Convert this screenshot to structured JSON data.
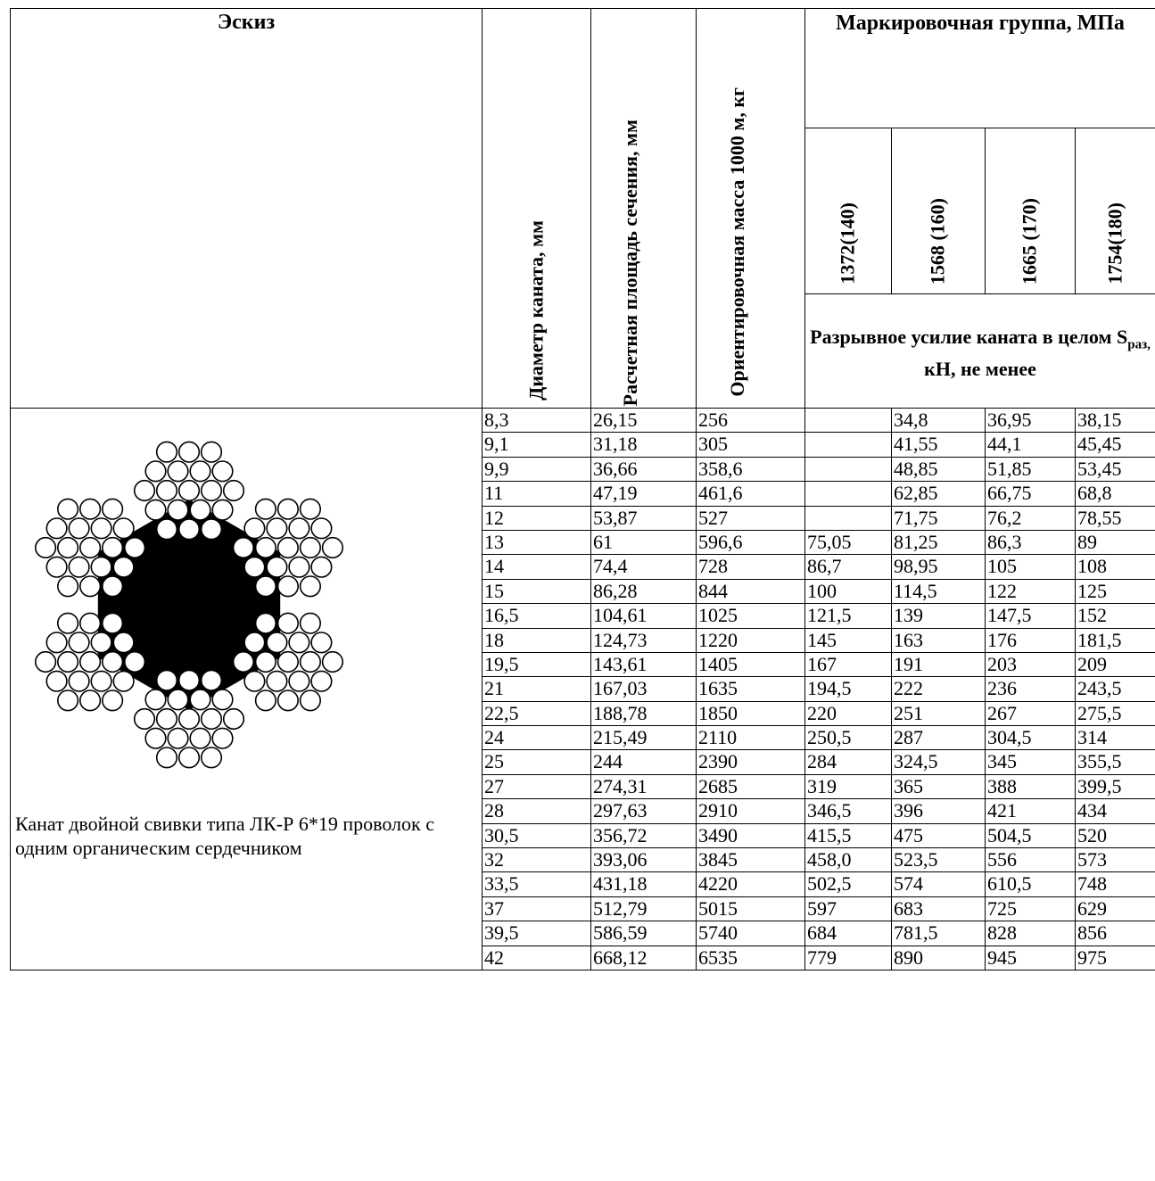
{
  "header": {
    "sketch": "Эскиз",
    "diameter": "Диаметр каната, мм",
    "area": "Расчетная площадь сечения, мм",
    "mass": "Ориентировочная масса 1000 м, кг",
    "group": "Маркировочная группа, МПа",
    "grades": [
      "1372(140)",
      "1568 (160)",
      "1665 (170)",
      "1754(180)"
    ],
    "force_prefix": "Разрывное усилие каната в целом S",
    "force_sub": "раз,",
    "force_suffix": " кН, не менее"
  },
  "caption": "Канат двойной свивки типа ЛК-Р 6*19 проволок с одним органическим сердечником",
  "rows": [
    [
      "8,3",
      "26,15",
      "256",
      "",
      "34,8",
      "36,95",
      "38,15"
    ],
    [
      "9,1",
      "31,18",
      "305",
      "",
      "41,55",
      "44,1",
      "45,45"
    ],
    [
      "9,9",
      "36,66",
      "358,6",
      "",
      "48,85",
      "51,85",
      "53,45"
    ],
    [
      "11",
      "47,19",
      "461,6",
      "",
      "62,85",
      "66,75",
      "68,8"
    ],
    [
      "12",
      "53,87",
      "527",
      "",
      "71,75",
      "76,2",
      "78,55"
    ],
    [
      "13",
      "61",
      "596,6",
      "75,05",
      "81,25",
      "86,3",
      "89"
    ],
    [
      "14",
      "74,4",
      "728",
      "86,7",
      "98,95",
      "105",
      "108"
    ],
    [
      "15",
      "86,28",
      "844",
      "100",
      "114,5",
      "122",
      "125"
    ],
    [
      "16,5",
      "104,61",
      "1025",
      "121,5",
      "139",
      "147,5",
      "152"
    ],
    [
      "18",
      "124,73",
      "1220",
      "145",
      "163",
      "176",
      "181,5"
    ],
    [
      "19,5",
      "143,61",
      "1405",
      "167",
      "191",
      "203",
      "209"
    ],
    [
      "21",
      "167,03",
      "1635",
      "194,5",
      "222",
      "236",
      "243,5"
    ],
    [
      "22,5",
      "188,78",
      "1850",
      "220",
      "251",
      "267",
      "275,5"
    ],
    [
      "24",
      "215,49",
      "2110",
      "250,5",
      "287",
      "304,5",
      "314"
    ],
    [
      "25",
      "244",
      "2390",
      "284",
      "324,5",
      "345",
      "355,5"
    ],
    [
      "27",
      "274,31",
      "2685",
      "319",
      "365",
      "388",
      "399,5"
    ],
    [
      "28",
      "297,63",
      "2910",
      "346,5",
      "396",
      "421",
      "434"
    ],
    [
      "30,5",
      "356,72",
      "3490",
      "415,5",
      "475",
      "504,5",
      "520"
    ],
    [
      "32",
      "393,06",
      "3845",
      "458,0",
      "523,5",
      "556",
      "573"
    ],
    [
      "33,5",
      "431,18",
      "4220",
      "502,5",
      "574",
      "610,5",
      "748"
    ],
    [
      "37",
      "512,79",
      "5015",
      "597",
      "683",
      "725",
      "629"
    ],
    [
      "39,5",
      "586,59",
      "5740",
      "684",
      "781,5",
      "828",
      "856"
    ],
    [
      "42",
      "668,12",
      "6535",
      "779",
      "890",
      "945",
      "975"
    ]
  ]
}
